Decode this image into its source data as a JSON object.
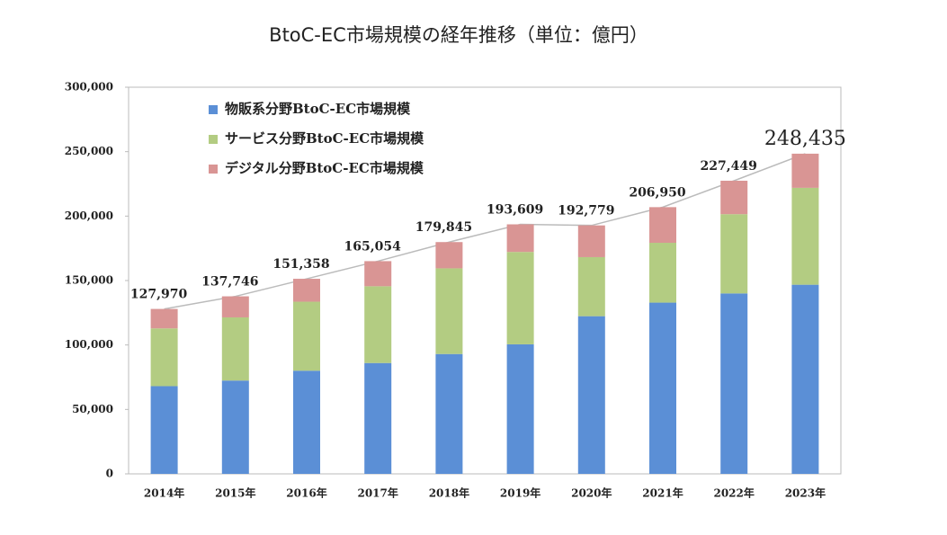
{
  "chart_data": {
    "type": "stacked_bar",
    "title": "BtoC-EC市場規模の経年推移（単位：億円）",
    "categories": [
      "2014年",
      "2015年",
      "2016年",
      "2017年",
      "2018年",
      "2019年",
      "2020年",
      "2021年",
      "2022年",
      "2023年"
    ],
    "series": [
      {
        "name": "物販系分野BtoC-EC市場規模",
        "color": "#5b8fd6",
        "values": [
          68043,
          72398,
          80043,
          86008,
          92992,
          100515,
          122333,
          132865,
          139997,
          146760
        ]
      },
      {
        "name": "サービス分野BtoC-EC市場規模",
        "color": "#b3cc82",
        "values": [
          44816,
          49014,
          53532,
          59568,
          66471,
          71672,
          45832,
          46424,
          61477,
          75169
        ]
      },
      {
        "name": "デジタル分野BtoC-EC市場規模",
        "color": "#d99594",
        "values": [
          15111,
          16334,
          17782,
          19478,
          20382,
          21422,
          24614,
          27661,
          25974,
          26506
        ]
      }
    ],
    "total_labels": [
      "127,970",
      "137,746",
      "151,358",
      "165,054",
      "179,845",
      "193,609",
      "192,779",
      "206,950",
      "227,449",
      "248,435"
    ],
    "ylim": [
      0,
      300000
    ],
    "yticks": [
      0,
      {
        "value": 50000,
        "label": "50,000"
      },
      {
        "value": 100000,
        "label": "100,000"
      },
      {
        "value": 150000,
        "label": "150,000"
      },
      {
        "value": 200000,
        "label": "200,000"
      },
      {
        "value": 250000,
        "label": "250,000"
      },
      {
        "value": 300000,
        "label": "300,000"
      }
    ],
    "legend": "upper left",
    "grid": false
  }
}
